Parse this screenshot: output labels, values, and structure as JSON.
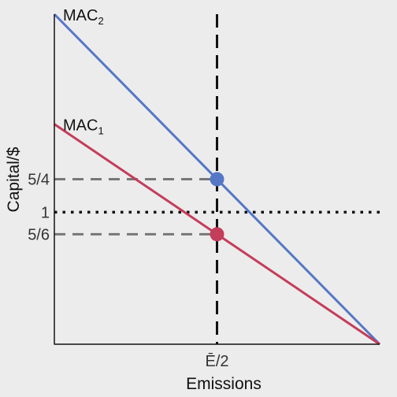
{
  "chart_data": {
    "type": "line",
    "xlabel": "Emissions",
    "ylabel": "Capital/$",
    "x_ticks": [
      {
        "x": 0.5,
        "label": "Ē/2"
      }
    ],
    "y_ticks": [
      {
        "y": 1.25,
        "label": "5/4"
      },
      {
        "y": 1.0,
        "label": "1"
      },
      {
        "y": 0.8333,
        "label": "5/6"
      }
    ],
    "xlim": [
      0,
      1
    ],
    "ylim": [
      0,
      2.5
    ],
    "grid": false,
    "series": [
      {
        "name": "MAC",
        "subscript": "2",
        "color": "#5577c6",
        "x": [
          0,
          1
        ],
        "y": [
          2.5,
          0
        ],
        "marker": {
          "x": 0.5,
          "y": 1.25
        }
      },
      {
        "name": "MAC",
        "subscript": "1",
        "color": "#c43d5b",
        "x": [
          0,
          1
        ],
        "y": [
          1.6667,
          0
        ],
        "marker": {
          "x": 0.5,
          "y": 0.8333
        }
      }
    ],
    "reference_lines": [
      {
        "orientation": "vertical",
        "x": 0.5,
        "style": "dashed",
        "color": "#111111"
      },
      {
        "orientation": "horizontal",
        "y": 1.0,
        "style": "dotted",
        "color": "#111111"
      },
      {
        "orientation": "horizontal",
        "y": 1.25,
        "x_end": 0.5,
        "style": "dashed",
        "color": "#777777"
      },
      {
        "orientation": "horizontal",
        "y": 0.8333,
        "x_end": 0.5,
        "style": "dashed",
        "color": "#777777"
      }
    ]
  }
}
